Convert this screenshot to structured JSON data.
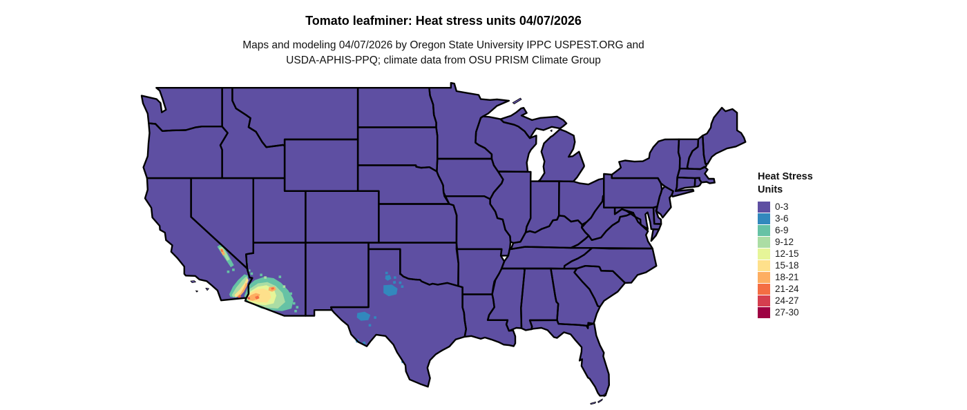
{
  "header": {
    "title": "Tomato leafminer: Heat stress units 04/07/2026",
    "subtitle_line1": "Maps and modeling 04/07/2026 by Oregon State University IPPC USPEST.ORG and",
    "subtitle_line2": "USDA-APHIS-PPQ; climate data from OSU PRISM Climate Group"
  },
  "legend": {
    "title_line1": "Heat Stress",
    "title_line2": "Units",
    "items": [
      {
        "label": "0-3",
        "color": "#5e4fa2"
      },
      {
        "label": "3-6",
        "color": "#3288bd"
      },
      {
        "label": "6-9",
        "color": "#66c2a5"
      },
      {
        "label": "9-12",
        "color": "#abdda4"
      },
      {
        "label": "12-15",
        "color": "#e6f598"
      },
      {
        "label": "15-18",
        "color": "#fee08b"
      },
      {
        "label": "18-21",
        "color": "#fdae61"
      },
      {
        "label": "21-24",
        "color": "#f46d43"
      },
      {
        "label": "24-27",
        "color": "#d53e4f"
      },
      {
        "label": "27-30",
        "color": "#9e0142"
      }
    ]
  },
  "map": {
    "region": "Contiguous United States",
    "background_color": "#ffffff",
    "land_fill_color": "#5e4fa2",
    "border_color": "#000000",
    "hotspots": [
      {
        "area": "Southwest Arizona (Yuma-Phoenix low desert)",
        "classes": "6-9 up to 24-27"
      },
      {
        "area": "Southeast California (Imperial Valley / lower Colorado River)",
        "classes": "6-9 up to 21-24"
      },
      {
        "area": "Death Valley region, California",
        "classes": "6-9 up to 21-24"
      },
      {
        "area": "West Texas (rolling plains, Trans-Pecos, Big Bend)",
        "classes": "3-6"
      }
    ]
  }
}
